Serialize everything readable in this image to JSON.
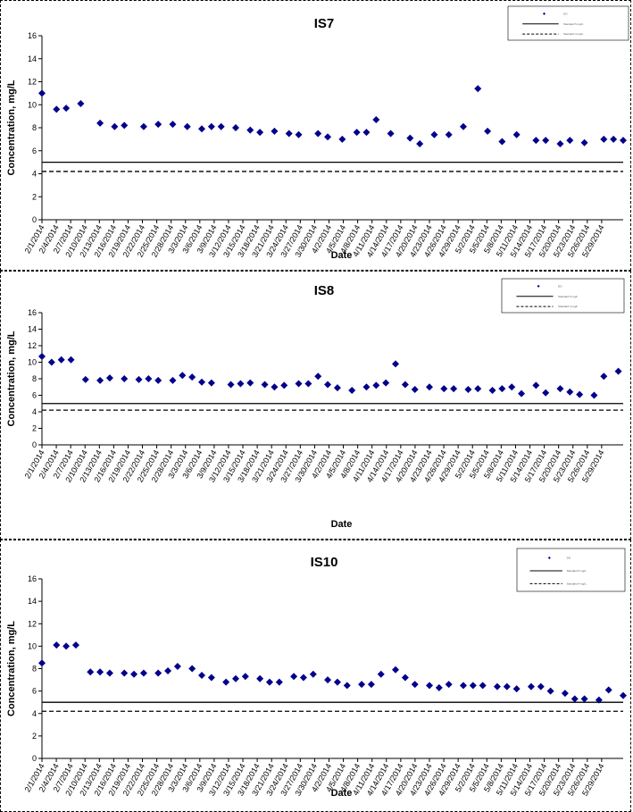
{
  "charts": [
    {
      "type": "scatter",
      "title": "IS7",
      "xlabel": "Date",
      "ylabel": "Concentration, mg/L",
      "ylim": [
        0,
        16
      ],
      "yticks": [
        0,
        2,
        4,
        6,
        8,
        10,
        12,
        14,
        16
      ],
      "xlim": [
        "2014-02-01",
        "2014-06-01"
      ],
      "xtick_labels": [
        "2/1/2014",
        "2/4/2014",
        "2/7/2014",
        "2/10/2014",
        "2/13/2014",
        "2/16/2014",
        "2/19/2014",
        "2/22/2014",
        "2/25/2014",
        "2/28/2014",
        "3/3/2014",
        "3/6/2014",
        "3/9/2014",
        "3/12/2014",
        "3/15/2014",
        "3/18/2014",
        "3/21/2014",
        "3/24/2014",
        "3/27/2014",
        "3/30/2014",
        "4/2/2014",
        "4/5/2014",
        "4/8/2014",
        "4/11/2014",
        "4/14/2014",
        "4/17/2014",
        "4/20/2014",
        "4/23/2014",
        "4/26/2014",
        "4/29/2014",
        "5/2/2014",
        "5/5/2014",
        "5/8/2014",
        "5/11/2014",
        "5/14/2014",
        "5/17/2014",
        "5/20/2014",
        "5/23/2014",
        "5/26/2014",
        "5/29/2014"
      ],
      "legend_position": "top-right",
      "legend": {
        "marker_label": "DO",
        "solid_label": "Standard 5 mg/L",
        "dashed_label": "Standard 4 mg/L"
      },
      "colors": {
        "marker": "#00008B",
        "lines": "#000000"
      },
      "series": [
        {
          "type": "scatter",
          "x": [
            "2014-02-01",
            "2014-02-04",
            "2014-02-06",
            "2014-02-09",
            "2014-02-13",
            "2014-02-16",
            "2014-02-18",
            "2014-02-22",
            "2014-02-25",
            "2014-02-28",
            "2014-03-03",
            "2014-03-06",
            "2014-03-08",
            "2014-03-10",
            "2014-03-13",
            "2014-03-16",
            "2014-03-18",
            "2014-03-21",
            "2014-03-24",
            "2014-03-26",
            "2014-03-30",
            "2014-04-01",
            "2014-04-04",
            "2014-04-07",
            "2014-04-09",
            "2014-04-11",
            "2014-04-14",
            "2014-04-18",
            "2014-04-20",
            "2014-04-23",
            "2014-04-26",
            "2014-04-29",
            "2014-05-02",
            "2014-05-04",
            "2014-05-07",
            "2014-05-10",
            "2014-05-14",
            "2014-05-16",
            "2014-05-19",
            "2014-05-21",
            "2014-05-24",
            "2014-05-28",
            "2014-05-30",
            "2014-06-01"
          ],
          "y": [
            11.0,
            9.6,
            9.7,
            10.1,
            8.4,
            8.1,
            8.2,
            8.1,
            8.3,
            8.3,
            8.1,
            7.9,
            8.1,
            8.1,
            8.0,
            7.8,
            7.6,
            7.7,
            7.5,
            7.4,
            7.5,
            7.2,
            7.0,
            7.6,
            7.6,
            8.7,
            7.5,
            7.1,
            6.6,
            7.4,
            7.4,
            8.1,
            11.4,
            7.7,
            6.8,
            7.4,
            6.9,
            6.9,
            6.6,
            6.9,
            6.7,
            7.0,
            7.0,
            6.9
          ]
        },
        {
          "type": "line",
          "y": 5.0
        },
        {
          "type": "line",
          "y": 4.2
        }
      ]
    },
    {
      "type": "scatter",
      "title": "IS8",
      "xlabel": "Date",
      "ylabel": "Concentration, mg/L",
      "ylim": [
        0,
        16
      ],
      "yticks": [
        0,
        2,
        4,
        6,
        8,
        10,
        12,
        14,
        16
      ],
      "xlim": [
        "2014-02-01",
        "2014-06-01"
      ],
      "xtick_labels": [
        "2/1/2014",
        "2/4/2014",
        "2/7/2014",
        "2/10/2014",
        "2/13/2014",
        "2/16/2014",
        "2/19/2014",
        "2/22/2014",
        "2/25/2014",
        "2/28/2014",
        "3/3/2014",
        "3/6/2014",
        "3/9/2014",
        "3/12/2014",
        "3/15/2014",
        "3/18/2014",
        "3/21/2014",
        "3/24/2014",
        "3/27/2014",
        "3/30/2014",
        "4/2/2014",
        "4/5/2014",
        "4/8/2014",
        "4/11/2014",
        "4/14/2014",
        "4/17/2014",
        "4/20/2014",
        "4/23/2014",
        "4/26/2014",
        "4/29/2014",
        "5/2/2014",
        "5/5/2014",
        "5/8/2014",
        "5/11/2014",
        "5/14/2014",
        "5/17/2014",
        "5/20/2014",
        "5/23/2014",
        "5/26/2014",
        "5/29/2014"
      ],
      "legend_position": "top-right",
      "legend": {
        "marker_label": "DO",
        "solid_label": "Standard 5 mg/L",
        "dashed_label": "Standard 4 mg/L"
      },
      "colors": {
        "marker": "#00008B",
        "lines": "#000000"
      },
      "series": [
        {
          "type": "scatter",
          "x": [
            "2014-02-01",
            "2014-02-03",
            "2014-02-05",
            "2014-02-07",
            "2014-02-10",
            "2014-02-13",
            "2014-02-15",
            "2014-02-18",
            "2014-02-21",
            "2014-02-23",
            "2014-02-25",
            "2014-02-28",
            "2014-03-02",
            "2014-03-04",
            "2014-03-06",
            "2014-03-08",
            "2014-03-12",
            "2014-03-14",
            "2014-03-16",
            "2014-03-19",
            "2014-03-21",
            "2014-03-23",
            "2014-03-26",
            "2014-03-28",
            "2014-03-30",
            "2014-04-01",
            "2014-04-03",
            "2014-04-06",
            "2014-04-09",
            "2014-04-11",
            "2014-04-13",
            "2014-04-15",
            "2014-04-17",
            "2014-04-19",
            "2014-04-22",
            "2014-04-25",
            "2014-04-27",
            "2014-04-30",
            "2014-05-02",
            "2014-05-05",
            "2014-05-07",
            "2014-05-09",
            "2014-05-11",
            "2014-05-14",
            "2014-05-16",
            "2014-05-19",
            "2014-05-21",
            "2014-05-23",
            "2014-05-26",
            "2014-05-28",
            "2014-05-31"
          ],
          "y": [
            10.7,
            10.0,
            10.3,
            10.3,
            7.9,
            7.8,
            8.1,
            8.0,
            7.9,
            8.0,
            7.8,
            7.8,
            8.4,
            8.2,
            7.6,
            7.5,
            7.3,
            7.4,
            7.5,
            7.3,
            7.0,
            7.2,
            7.4,
            7.4,
            8.3,
            7.3,
            6.9,
            6.6,
            7.0,
            7.2,
            7.5,
            9.8,
            7.3,
            6.7,
            7.0,
            6.8,
            6.8,
            6.7,
            6.8,
            6.6,
            6.8,
            7.0,
            6.2,
            7.2,
            6.3,
            6.8,
            6.4,
            6.1,
            6.0,
            8.3,
            8.9
          ]
        },
        {
          "type": "line",
          "y": 5.0
        },
        {
          "type": "line",
          "y": 4.2
        }
      ]
    },
    {
      "type": "scatter",
      "title": "IS10",
      "xlabel": "Date",
      "ylabel": "Concentration, mg/L",
      "ylim": [
        0,
        16
      ],
      "yticks": [
        0,
        2,
        4,
        6,
        8,
        10,
        12,
        14,
        16
      ],
      "xlim": [
        "2014-02-01",
        "2014-06-01"
      ],
      "xtick_labels": [
        "2/1/2014",
        "2/4/2014",
        "2/7/2014",
        "2/10/2014",
        "2/13/2014",
        "2/16/2014",
        "2/19/2014",
        "2/22/2014",
        "2/25/2014",
        "2/28/2014",
        "3/3/2014",
        "3/6/2014",
        "3/9/2014",
        "3/12/2014",
        "3/15/2014",
        "3/18/2014",
        "3/21/2014",
        "3/24/2014",
        "3/27/2014",
        "3/30/2014",
        "4/2/2014",
        "4/5/2014",
        "4/8/2014",
        "4/11/2014",
        "4/14/2014",
        "4/17/2014",
        "4/20/2014",
        "4/23/2014",
        "4/26/2014",
        "4/29/2014",
        "5/2/2014",
        "5/5/2014",
        "5/8/2014",
        "5/11/2014",
        "5/14/2014",
        "5/17/2014",
        "5/20/2014",
        "5/23/2014",
        "5/26/2014",
        "5/29/2014"
      ],
      "legend_position": "top-right",
      "legend": {
        "marker_label": "DO",
        "solid_label": "Standard 5 mg/L",
        "dashed_label": "Standard 4 mg/L"
      },
      "colors": {
        "marker": "#00008B",
        "lines": "#000000"
      },
      "series": [
        {
          "type": "scatter",
          "x": [
            "2014-02-01",
            "2014-02-04",
            "2014-02-06",
            "2014-02-08",
            "2014-02-11",
            "2014-02-13",
            "2014-02-15",
            "2014-02-18",
            "2014-02-20",
            "2014-02-22",
            "2014-02-25",
            "2014-02-27",
            "2014-03-01",
            "2014-03-04",
            "2014-03-06",
            "2014-03-08",
            "2014-03-11",
            "2014-03-13",
            "2014-03-15",
            "2014-03-18",
            "2014-03-20",
            "2014-03-22",
            "2014-03-25",
            "2014-03-27",
            "2014-03-29",
            "2014-04-01",
            "2014-04-03",
            "2014-04-05",
            "2014-04-08",
            "2014-04-10",
            "2014-04-12",
            "2014-04-15",
            "2014-04-17",
            "2014-04-19",
            "2014-04-22",
            "2014-04-24",
            "2014-04-26",
            "2014-04-29",
            "2014-05-01",
            "2014-05-03",
            "2014-05-06",
            "2014-05-08",
            "2014-05-10",
            "2014-05-13",
            "2014-05-15",
            "2014-05-17",
            "2014-05-20",
            "2014-05-22",
            "2014-05-24",
            "2014-05-27",
            "2014-05-29",
            "2014-06-01"
          ],
          "y": [
            8.5,
            10.1,
            10.0,
            10.1,
            7.7,
            7.7,
            7.6,
            7.6,
            7.5,
            7.6,
            7.6,
            7.8,
            8.2,
            8.0,
            7.4,
            7.2,
            6.8,
            7.1,
            7.3,
            7.1,
            6.8,
            6.8,
            7.3,
            7.2,
            7.5,
            7.0,
            6.8,
            6.5,
            6.6,
            6.6,
            7.5,
            7.9,
            7.2,
            6.6,
            6.5,
            6.3,
            6.6,
            6.5,
            6.5,
            6.5,
            6.4,
            6.4,
            6.2,
            6.4,
            6.4,
            6.0,
            5.8,
            5.3,
            5.3,
            5.2,
            6.1,
            5.6
          ]
        },
        {
          "type": "line",
          "y": 5.0
        },
        {
          "type": "line",
          "y": 4.2
        }
      ]
    }
  ]
}
